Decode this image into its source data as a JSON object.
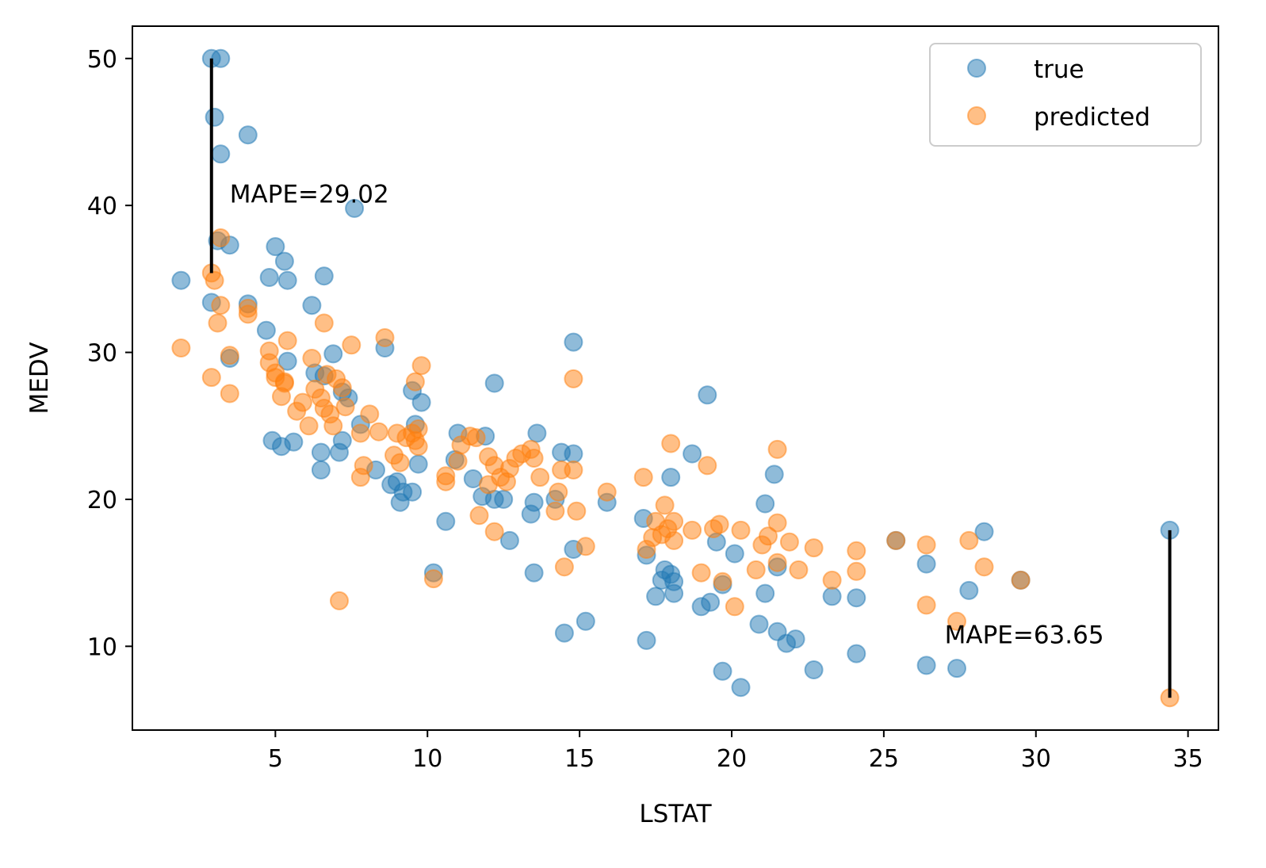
{
  "chart_data": {
    "type": "scatter",
    "xlabel": "LSTAT",
    "ylabel": "MEDV",
    "xlim": [
      0.3,
      36.0
    ],
    "ylim": [
      4.3,
      52.2
    ],
    "xticks": [
      5,
      10,
      15,
      20,
      25,
      30,
      35
    ],
    "yticks": [
      10,
      20,
      30,
      40,
      50
    ],
    "legend_position": "top-right",
    "series": [
      {
        "name": "true",
        "color": "#1f77b4",
        "points": [
          [
            1.9,
            34.9
          ],
          [
            2.9,
            50.0
          ],
          [
            3.2,
            50.0
          ],
          [
            3.0,
            46.0
          ],
          [
            3.2,
            43.5
          ],
          [
            4.1,
            44.8
          ],
          [
            7.6,
            39.8
          ],
          [
            3.1,
            37.6
          ],
          [
            3.5,
            37.3
          ],
          [
            5.0,
            37.2
          ],
          [
            5.3,
            36.2
          ],
          [
            4.8,
            35.1
          ],
          [
            5.4,
            34.9
          ],
          [
            6.6,
            35.2
          ],
          [
            2.9,
            33.4
          ],
          [
            4.1,
            33.3
          ],
          [
            6.2,
            33.2
          ],
          [
            4.7,
            31.5
          ],
          [
            5.4,
            29.4
          ],
          [
            3.5,
            29.6
          ],
          [
            6.9,
            29.9
          ],
          [
            8.6,
            30.3
          ],
          [
            14.8,
            30.7
          ],
          [
            6.3,
            28.6
          ],
          [
            6.6,
            28.4
          ],
          [
            7.2,
            27.3
          ],
          [
            7.4,
            26.9
          ],
          [
            9.5,
            27.4
          ],
          [
            9.8,
            26.6
          ],
          [
            12.2,
            27.9
          ],
          [
            7.8,
            25.1
          ],
          [
            9.6,
            25.1
          ],
          [
            4.9,
            24.0
          ],
          [
            5.2,
            23.6
          ],
          [
            5.6,
            23.9
          ],
          [
            6.5,
            23.2
          ],
          [
            6.5,
            22.0
          ],
          [
            7.1,
            23.2
          ],
          [
            7.2,
            24.0
          ],
          [
            8.3,
            22.0
          ],
          [
            8.8,
            21.0
          ],
          [
            9.0,
            21.2
          ],
          [
            9.7,
            22.4
          ],
          [
            9.1,
            19.8
          ],
          [
            9.2,
            20.5
          ],
          [
            9.5,
            20.5
          ],
          [
            10.9,
            22.7
          ],
          [
            11.0,
            24.5
          ],
          [
            11.9,
            24.3
          ],
          [
            11.5,
            21.4
          ],
          [
            11.8,
            20.2
          ],
          [
            12.2,
            20.0
          ],
          [
            12.5,
            20.0
          ],
          [
            12.7,
            17.2
          ],
          [
            13.4,
            19.0
          ],
          [
            13.6,
            24.5
          ],
          [
            13.5,
            19.8
          ],
          [
            14.4,
            23.2
          ],
          [
            14.2,
            20.0
          ],
          [
            14.8,
            23.1
          ],
          [
            14.8,
            16.6
          ],
          [
            10.6,
            18.5
          ],
          [
            10.2,
            15.0
          ],
          [
            13.5,
            15.0
          ],
          [
            14.5,
            10.9
          ],
          [
            15.2,
            11.7
          ],
          [
            15.9,
            19.8
          ],
          [
            17.1,
            18.7
          ],
          [
            17.2,
            16.2
          ],
          [
            17.5,
            13.4
          ],
          [
            17.7,
            14.5
          ],
          [
            17.8,
            15.2
          ],
          [
            18.0,
            14.9
          ],
          [
            18.1,
            14.4
          ],
          [
            18.1,
            13.6
          ],
          [
            18.0,
            21.5
          ],
          [
            17.2,
            10.4
          ],
          [
            18.7,
            23.1
          ],
          [
            19.2,
            27.1
          ],
          [
            19.0,
            12.7
          ],
          [
            19.3,
            13.0
          ],
          [
            19.5,
            17.1
          ],
          [
            19.7,
            14.2
          ],
          [
            19.7,
            8.3
          ],
          [
            20.1,
            16.3
          ],
          [
            20.3,
            7.2
          ],
          [
            20.9,
            11.5
          ],
          [
            21.1,
            13.6
          ],
          [
            21.1,
            19.7
          ],
          [
            21.4,
            21.7
          ],
          [
            21.5,
            15.4
          ],
          [
            21.5,
            11.0
          ],
          [
            21.8,
            10.2
          ],
          [
            22.1,
            10.5
          ],
          [
            22.7,
            8.4
          ],
          [
            23.3,
            13.4
          ],
          [
            24.1,
            13.3
          ],
          [
            24.1,
            9.5
          ],
          [
            25.4,
            17.2
          ],
          [
            26.4,
            15.6
          ],
          [
            26.4,
            8.7
          ],
          [
            27.4,
            8.5
          ],
          [
            27.8,
            13.8
          ],
          [
            28.3,
            17.8
          ],
          [
            29.5,
            14.5
          ],
          [
            34.4,
            17.9
          ]
        ]
      },
      {
        "name": "predicted",
        "color": "#ff7f0e",
        "points": [
          [
            1.9,
            30.3
          ],
          [
            2.9,
            35.4
          ],
          [
            3.0,
            34.9
          ],
          [
            3.2,
            37.8
          ],
          [
            3.2,
            33.2
          ],
          [
            3.1,
            32.0
          ],
          [
            2.9,
            28.3
          ],
          [
            3.5,
            29.8
          ],
          [
            3.5,
            27.2
          ],
          [
            4.1,
            33.0
          ],
          [
            4.1,
            32.6
          ],
          [
            4.8,
            30.1
          ],
          [
            4.8,
            29.3
          ],
          [
            5.0,
            28.6
          ],
          [
            5.2,
            27.0
          ],
          [
            5.3,
            28.0
          ],
          [
            5.4,
            30.8
          ],
          [
            5.0,
            28.3
          ],
          [
            5.3,
            27.9
          ],
          [
            5.7,
            26.0
          ],
          [
            5.9,
            26.6
          ],
          [
            6.1,
            25.0
          ],
          [
            6.2,
            29.6
          ],
          [
            6.3,
            27.5
          ],
          [
            6.5,
            26.9
          ],
          [
            6.6,
            26.2
          ],
          [
            6.6,
            32.0
          ],
          [
            6.7,
            28.5
          ],
          [
            6.8,
            25.8
          ],
          [
            6.9,
            25.0
          ],
          [
            7.0,
            28.2
          ],
          [
            7.2,
            27.6
          ],
          [
            7.3,
            26.3
          ],
          [
            7.5,
            30.5
          ],
          [
            7.8,
            24.5
          ],
          [
            7.8,
            21.5
          ],
          [
            7.9,
            22.3
          ],
          [
            8.1,
            25.8
          ],
          [
            8.4,
            24.6
          ],
          [
            8.6,
            31.0
          ],
          [
            8.9,
            23.0
          ],
          [
            9.0,
            24.5
          ],
          [
            9.1,
            22.5
          ],
          [
            9.3,
            24.2
          ],
          [
            9.5,
            24.5
          ],
          [
            9.6,
            24.0
          ],
          [
            9.6,
            28.0
          ],
          [
            9.7,
            24.8
          ],
          [
            9.7,
            23.6
          ],
          [
            9.8,
            29.1
          ],
          [
            7.1,
            13.1
          ],
          [
            10.2,
            14.6
          ],
          [
            10.6,
            21.6
          ],
          [
            10.6,
            21.2
          ],
          [
            11.0,
            22.6
          ],
          [
            11.1,
            23.7
          ],
          [
            11.4,
            24.3
          ],
          [
            11.6,
            24.2
          ],
          [
            11.7,
            18.9
          ],
          [
            12.0,
            22.9
          ],
          [
            12.0,
            21.0
          ],
          [
            12.2,
            17.8
          ],
          [
            12.2,
            22.3
          ],
          [
            12.4,
            21.5
          ],
          [
            12.6,
            21.2
          ],
          [
            12.7,
            22.1
          ],
          [
            12.9,
            22.8
          ],
          [
            13.1,
            23.1
          ],
          [
            13.4,
            23.4
          ],
          [
            13.5,
            22.8
          ],
          [
            13.7,
            21.5
          ],
          [
            14.2,
            19.2
          ],
          [
            14.3,
            20.5
          ],
          [
            14.4,
            22.0
          ],
          [
            14.5,
            15.4
          ],
          [
            14.8,
            22.0
          ],
          [
            14.8,
            28.2
          ],
          [
            14.9,
            19.2
          ],
          [
            15.2,
            16.8
          ],
          [
            15.9,
            20.5
          ],
          [
            17.1,
            21.5
          ],
          [
            17.2,
            16.6
          ],
          [
            17.4,
            17.4
          ],
          [
            17.5,
            18.5
          ],
          [
            17.7,
            17.6
          ],
          [
            17.8,
            19.6
          ],
          [
            17.9,
            18.0
          ],
          [
            18.0,
            23.8
          ],
          [
            18.1,
            18.5
          ],
          [
            18.1,
            17.2
          ],
          [
            18.7,
            17.9
          ],
          [
            19.0,
            15.0
          ],
          [
            19.2,
            22.3
          ],
          [
            19.4,
            18.0
          ],
          [
            19.6,
            18.3
          ],
          [
            19.7,
            14.4
          ],
          [
            20.1,
            12.7
          ],
          [
            20.3,
            17.9
          ],
          [
            20.8,
            15.2
          ],
          [
            21.0,
            16.9
          ],
          [
            21.2,
            17.5
          ],
          [
            21.5,
            18.4
          ],
          [
            21.5,
            15.7
          ],
          [
            21.5,
            23.4
          ],
          [
            21.9,
            17.1
          ],
          [
            22.2,
            15.2
          ],
          [
            22.7,
            16.7
          ],
          [
            23.3,
            14.5
          ],
          [
            24.1,
            16.5
          ],
          [
            24.1,
            15.1
          ],
          [
            25.4,
            17.2
          ],
          [
            26.4,
            16.9
          ],
          [
            26.4,
            12.8
          ],
          [
            27.4,
            11.7
          ],
          [
            27.8,
            17.2
          ],
          [
            28.3,
            15.4
          ],
          [
            29.5,
            14.5
          ],
          [
            34.4,
            6.5
          ]
        ]
      }
    ],
    "error_lines": [
      {
        "x": 2.9,
        "y_top": 50.0,
        "y_bottom": 35.4
      },
      {
        "x": 34.4,
        "y_top": 17.9,
        "y_bottom": 6.5
      }
    ],
    "annotations": [
      {
        "text": "MAPE=29.02",
        "x": 3.5,
        "y": 40.2
      },
      {
        "text": "MAPE=63.65",
        "x": 27.0,
        "y": 10.2
      }
    ]
  }
}
